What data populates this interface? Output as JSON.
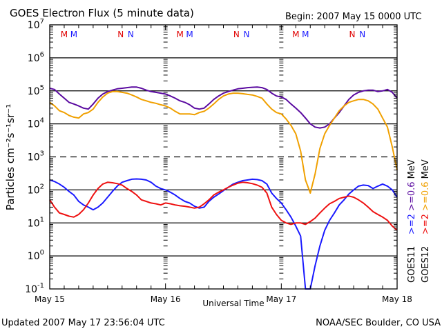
{
  "chart_data": {
    "type": "line",
    "title": "GOES Electron Flux (5 minute data)",
    "subtitle": "Begin: 2007 May 15 0000 UTC",
    "xlabel": "Universal Time",
    "ylabel": "Particles cm⁻²s⁻¹sr⁻¹",
    "x_unit": "hours since 2007 May 15 0000 UTC",
    "xlim": [
      0,
      72
    ],
    "x_tick_labels": [
      {
        "label": "May 15",
        "x": 0
      },
      {
        "label": "May 16",
        "x": 24
      },
      {
        "label": "May 17",
        "x": 48
      },
      {
        "label": "May 18",
        "x": 72
      }
    ],
    "yscale": "log",
    "ylim": [
      0.1,
      10000000
    ],
    "y_tick_labels": [
      {
        "base": "10",
        "exp": "7",
        "value": 10000000
      },
      {
        "base": "10",
        "exp": "6",
        "value": 1000000
      },
      {
        "base": "10",
        "exp": "5",
        "value": 100000
      },
      {
        "base": "10",
        "exp": "4",
        "value": 10000
      },
      {
        "base": "10",
        "exp": "3",
        "value": 1000
      },
      {
        "base": "10",
        "exp": "2",
        "value": 100
      },
      {
        "base": "10",
        "exp": "1",
        "value": 10
      },
      {
        "base": "10",
        "exp": "0",
        "value": 1
      },
      {
        "base": "10",
        "exp": "-1",
        "value": 0.1
      }
    ],
    "threshold_lines": [
      {
        "value": 1000,
        "style": "dashed"
      }
    ],
    "grid_lines": [
      1000000,
      100000,
      10000,
      100,
      10,
      1
    ],
    "local_time_markers": [
      {
        "label": "M",
        "color": "#e00000",
        "hour": 3.0
      },
      {
        "label": "M",
        "color": "#1a1aff",
        "hour": 5.0
      },
      {
        "label": "N",
        "color": "#e00000",
        "hour": 14.7
      },
      {
        "label": "N",
        "color": "#1a1aff",
        "hour": 16.8
      },
      {
        "label": "M",
        "color": "#e00000",
        "hour": 27.0
      },
      {
        "label": "M",
        "color": "#1a1aff",
        "hour": 29.0
      },
      {
        "label": "N",
        "color": "#e00000",
        "hour": 38.7
      },
      {
        "label": "N",
        "color": "#1a1aff",
        "hour": 40.8
      },
      {
        "label": "M",
        "color": "#e00000",
        "hour": 51.0
      },
      {
        "label": "M",
        "color": "#1a1aff",
        "hour": 53.0
      },
      {
        "label": "N",
        "color": "#e00000",
        "hour": 62.7
      },
      {
        "label": "N",
        "color": "#1a1aff",
        "hour": 64.8
      }
    ],
    "legend_placement": "right",
    "legend": [
      {
        "satellite": "GOES11",
        "channel_a": ">=2",
        "channel_b": ">=0.6",
        "unit": "MeV",
        "color_a": "#1a1aff",
        "color_b": "#5a0aa0"
      },
      {
        "satellite": "GOES12",
        "channel_a": ">=2",
        "channel_b": ">=0.6",
        "unit": "MeV",
        "color_a": "#ee1111",
        "color_b": "#f0a000"
      }
    ],
    "series": [
      {
        "name": "GOES11 >=0.6 MeV",
        "color": "#5a0aa0",
        "x": [
          0,
          1,
          2,
          3,
          4,
          5,
          6,
          7,
          8,
          9,
          10,
          11,
          12,
          13,
          14,
          15,
          16,
          17,
          18,
          19,
          20,
          21,
          22,
          23,
          24,
          25,
          26,
          27,
          28,
          29,
          30,
          31,
          32,
          33,
          34,
          35,
          36,
          37,
          38,
          39,
          40,
          41,
          42,
          43,
          44,
          45,
          46,
          47,
          48,
          49,
          50,
          51,
          52,
          53,
          54,
          55,
          56,
          57,
          58,
          59,
          60,
          61,
          62,
          63,
          64,
          65,
          66,
          67,
          68,
          69,
          70,
          71,
          72
        ],
        "values": [
          120000,
          110000,
          80000,
          60000,
          45000,
          40000,
          35000,
          30000,
          28000,
          40000,
          60000,
          80000,
          95000,
          105000,
          115000,
          120000,
          125000,
          130000,
          130000,
          120000,
          105000,
          95000,
          90000,
          85000,
          80000,
          70000,
          60000,
          50000,
          45000,
          38000,
          30000,
          28000,
          30000,
          40000,
          55000,
          70000,
          85000,
          95000,
          105000,
          115000,
          120000,
          125000,
          128000,
          130000,
          125000,
          110000,
          85000,
          70000,
          65000,
          55000,
          40000,
          30000,
          22000,
          15000,
          10000,
          8000,
          7500,
          8000,
          10000,
          15000,
          22000,
          35000,
          55000,
          75000,
          90000,
          100000,
          105000,
          105000,
          95000,
          100000,
          110000,
          90000,
          60000
        ]
      },
      {
        "name": "GOES12 >=0.6 MeV",
        "color": "#f0a000",
        "x": [
          0,
          1,
          2,
          3,
          4,
          5,
          6,
          7,
          8,
          9,
          10,
          11,
          12,
          13,
          14,
          15,
          16,
          17,
          18,
          19,
          20,
          21,
          22,
          23,
          24,
          25,
          26,
          27,
          28,
          29,
          30,
          31,
          32,
          33,
          34,
          35,
          36,
          37,
          38,
          39,
          40,
          41,
          42,
          43,
          44,
          45,
          46,
          47,
          48,
          49,
          50,
          51,
          52,
          53,
          54,
          55,
          56,
          57,
          58,
          59,
          60,
          61,
          62,
          63,
          64,
          65,
          66,
          67,
          68,
          69,
          70,
          71,
          72
        ],
        "values": [
          45000,
          35000,
          25000,
          22000,
          18000,
          16000,
          15000,
          20000,
          22000,
          28000,
          45000,
          65000,
          85000,
          95000,
          95000,
          90000,
          85000,
          75000,
          65000,
          55000,
          50000,
          45000,
          42000,
          38000,
          35000,
          30000,
          24000,
          20000,
          20000,
          20000,
          19000,
          22000,
          24000,
          30000,
          40000,
          55000,
          70000,
          80000,
          85000,
          85000,
          82000,
          78000,
          75000,
          68000,
          60000,
          40000,
          28000,
          22000,
          20000,
          14000,
          9000,
          5000,
          1500,
          200,
          80,
          300,
          1800,
          5000,
          9000,
          15000,
          25000,
          35000,
          45000,
          50000,
          55000,
          55000,
          50000,
          40000,
          28000,
          15000,
          8000,
          2000,
          400
        ]
      },
      {
        "name": "GOES11 >=2 MeV",
        "color": "#1a1aff",
        "x": [
          0,
          1,
          2,
          3,
          4,
          5,
          6,
          7,
          8,
          9,
          10,
          11,
          12,
          13,
          14,
          15,
          16,
          17,
          18,
          19,
          20,
          21,
          22,
          23,
          24,
          25,
          26,
          27,
          28,
          29,
          30,
          31,
          32,
          33,
          34,
          35,
          36,
          37,
          38,
          39,
          40,
          41,
          42,
          43,
          44,
          45,
          46,
          47,
          48,
          49,
          50,
          51,
          52,
          53,
          54,
          55,
          56,
          57,
          58,
          59,
          60,
          61,
          62,
          63,
          64,
          65,
          66,
          67,
          68,
          69,
          70,
          71,
          72
        ],
        "values": [
          200,
          180,
          150,
          120,
          90,
          70,
          45,
          35,
          30,
          25,
          30,
          40,
          60,
          90,
          130,
          170,
          190,
          210,
          215,
          210,
          200,
          170,
          130,
          110,
          100,
          85,
          70,
          55,
          45,
          40,
          32,
          28,
          30,
          45,
          60,
          75,
          95,
          120,
          150,
          170,
          190,
          200,
          210,
          205,
          190,
          150,
          80,
          55,
          40,
          25,
          15,
          8,
          4,
          0.1,
          0.1,
          0.5,
          2,
          6,
          12,
          20,
          35,
          50,
          75,
          100,
          130,
          140,
          135,
          110,
          130,
          150,
          130,
          100,
          60
        ]
      },
      {
        "name": "GOES12 >=2 MeV",
        "color": "#ee1111",
        "x": [
          0,
          1,
          2,
          3,
          4,
          5,
          6,
          7,
          8,
          9,
          10,
          11,
          12,
          13,
          14,
          15,
          16,
          17,
          18,
          19,
          20,
          21,
          22,
          23,
          24,
          25,
          26,
          27,
          28,
          29,
          30,
          31,
          32,
          33,
          34,
          35,
          36,
          37,
          38,
          39,
          40,
          41,
          42,
          43,
          44,
          45,
          46,
          47,
          48,
          49,
          50,
          51,
          52,
          53,
          54,
          55,
          56,
          57,
          58,
          59,
          60,
          61,
          62,
          63,
          64,
          65,
          66,
          67,
          68,
          69,
          70,
          71,
          72
        ],
        "values": [
          50,
          30,
          20,
          18,
          16,
          15,
          18,
          25,
          40,
          70,
          110,
          150,
          170,
          165,
          155,
          140,
          110,
          90,
          70,
          50,
          45,
          40,
          38,
          35,
          40,
          38,
          35,
          33,
          32,
          30,
          28,
          30,
          38,
          50,
          70,
          85,
          100,
          120,
          140,
          160,
          170,
          165,
          155,
          140,
          120,
          80,
          30,
          18,
          12,
          10,
          9,
          10,
          10,
          9,
          11,
          14,
          20,
          28,
          38,
          45,
          55,
          60,
          65,
          60,
          50,
          40,
          30,
          22,
          18,
          15,
          12,
          8,
          6
        ]
      }
    ],
    "footer_left": "Updated 2007 May 17 23:56:04 UTC",
    "footer_right": "NOAA/SEC Boulder, CO USA"
  }
}
